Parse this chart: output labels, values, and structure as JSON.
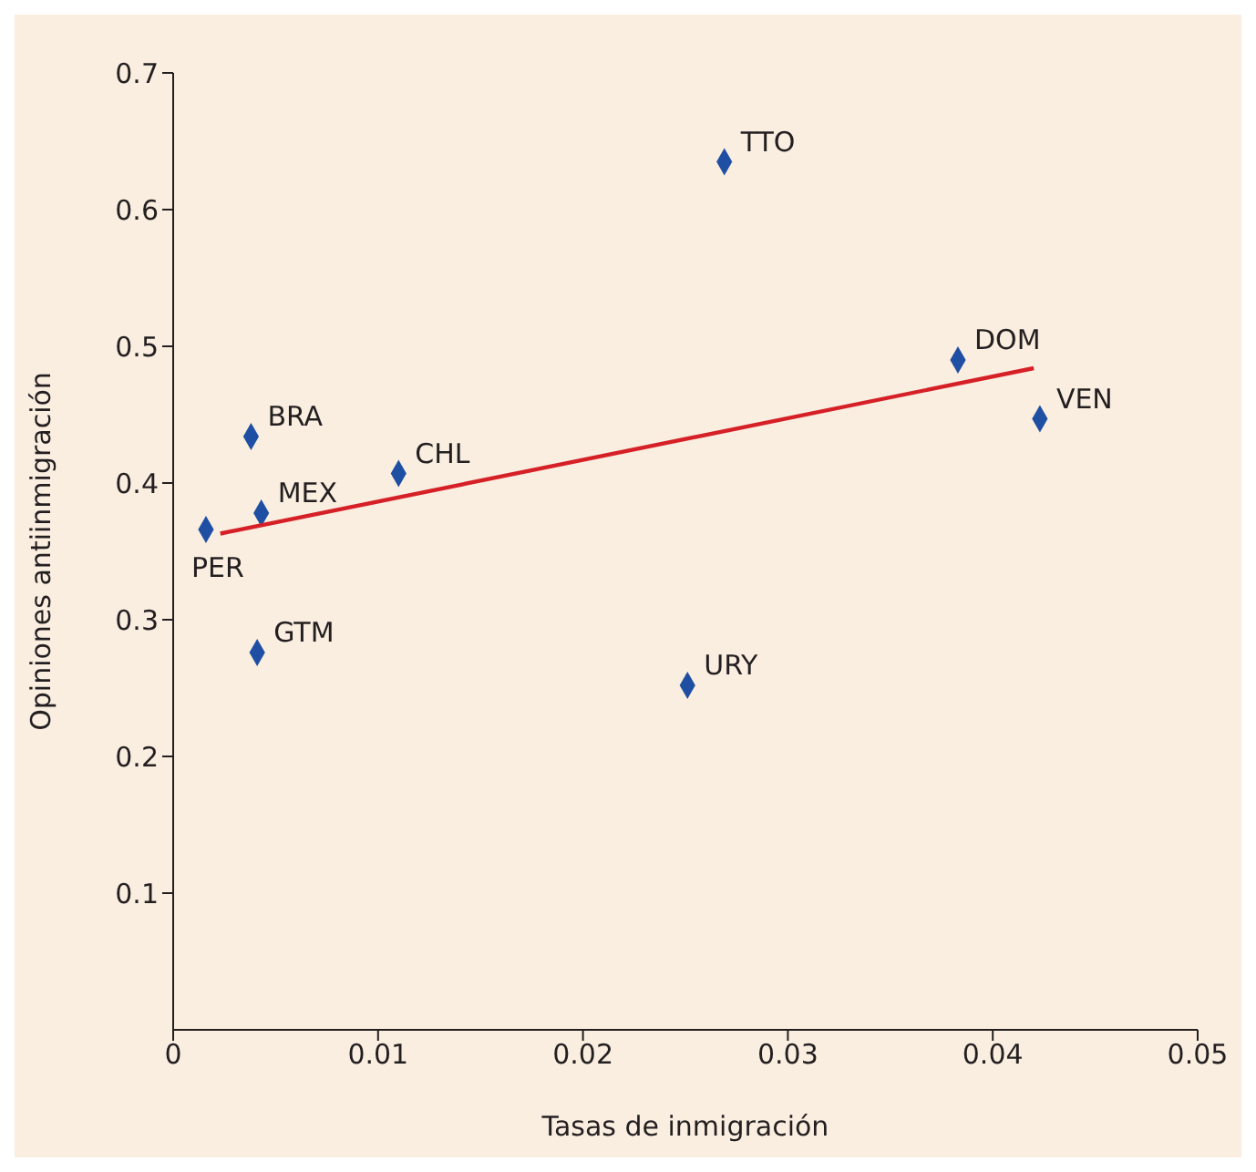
{
  "chart_data": {
    "type": "scatter",
    "xlabel": "Tasas de inmigración",
    "ylabel": "Opiniones antiinmigración",
    "xlim": [
      0,
      0.05
    ],
    "xticks": [
      0,
      0.01,
      0.02,
      0.03,
      0.04,
      0.05
    ],
    "ylim": [
      0,
      0.7
    ],
    "yticks": [
      0.1,
      0.2,
      0.3,
      0.4,
      0.5,
      0.6,
      0.7
    ],
    "series": [
      {
        "marker": "diamond",
        "color": "#1f4fa3",
        "x": [
          0.0269,
          0.0383,
          0.0423,
          0.0038,
          0.011,
          0.0043,
          0.0016,
          0.0041,
          0.0251
        ],
        "values": [
          0.635,
          0.49,
          0.447,
          0.434,
          0.407,
          0.378,
          0.366,
          0.276,
          0.252
        ]
      },
      {
        "type": "line",
        "marker": "none",
        "color": "#d62027",
        "x": [
          0.0023,
          0.042
        ],
        "values": [
          0.363,
          0.484
        ]
      }
    ],
    "annotations": [
      {
        "text": "TTO",
        "x": 0.0269,
        "y": 0.635
      },
      {
        "text": "DOM",
        "x": 0.0383,
        "y": 0.49
      },
      {
        "text": "VEN",
        "x": 0.0423,
        "y": 0.447
      },
      {
        "text": "BRA",
        "x": 0.0038,
        "y": 0.434
      },
      {
        "text": "CHL",
        "x": 0.011,
        "y": 0.407
      },
      {
        "text": "MEX",
        "x": 0.0043,
        "y": 0.378
      },
      {
        "text": "PER",
        "x": 0.0016,
        "y": 0.366
      },
      {
        "text": "GTM",
        "x": 0.0041,
        "y": 0.276
      },
      {
        "text": "URY",
        "x": 0.0251,
        "y": 0.252
      }
    ]
  }
}
